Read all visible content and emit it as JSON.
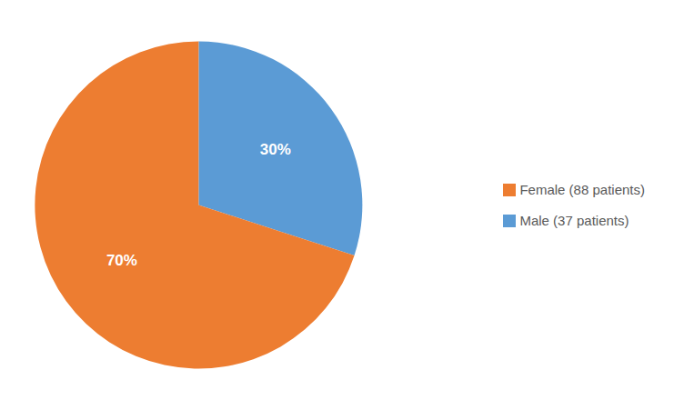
{
  "chart_data": {
    "type": "pie",
    "categories": [
      "Male (37 patients)",
      "Female (88 patients)"
    ],
    "values": [
      30,
      70
    ],
    "value_labels": [
      "30%",
      "70%"
    ],
    "colors": [
      "#5B9BD5",
      "#ED7D31"
    ],
    "data_labels": true,
    "legend": "right"
  }
}
